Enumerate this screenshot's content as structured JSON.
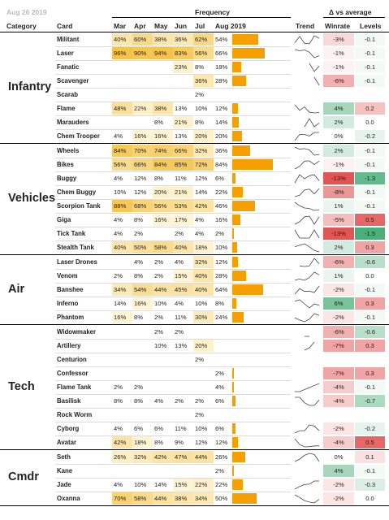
{
  "header": {
    "date": "Aug 26 2019",
    "frequency": "Frequency",
    "delta": "Δ vs average",
    "category": "Category",
    "card": "Card",
    "months": [
      "Mar",
      "Apr",
      "May",
      "Jun",
      "Jul",
      "Aug 2019"
    ],
    "trend": "Trend",
    "winrate": "Winrate",
    "levels": "Levels"
  },
  "colors": {
    "bar": "#f5a000",
    "pct_low": "#fff5d6",
    "pct_high": "#f5c24a",
    "pos": "#4caf7a",
    "neg": "#e04848",
    "separator": "#000000"
  },
  "chart_data": {
    "type": "table",
    "columns": [
      "Mar",
      "Apr",
      "May",
      "Jun",
      "Jul",
      "Aug 2019",
      "Trend",
      "Winrate",
      "Levels"
    ],
    "categories": [
      {
        "name": "Infantry",
        "rows": [
          {
            "card": "Militant",
            "freq": [
              "40%",
              "60%",
              "38%",
              "36%",
              "62%",
              "54%"
            ],
            "aug": 54,
            "winrate": "-3%",
            "wr": -3,
            "levels": "-0.1",
            "lv": -0.1
          },
          {
            "card": "Laser",
            "freq": [
              "96%",
              "90%",
              "94%",
              "83%",
              "56%",
              "66%"
            ],
            "aug": 66,
            "winrate": "-1%",
            "wr": -1,
            "levels": "-0.1",
            "lv": -0.1
          },
          {
            "card": "Fanatic",
            "freq": [
              "",
              "",
              "",
              "23%",
              "8%",
              "18%"
            ],
            "aug": 18,
            "winrate": "-1%",
            "wr": -1,
            "levels": "-0.1",
            "lv": -0.1
          },
          {
            "card": "Scavenger",
            "freq": [
              "",
              "",
              "",
              "",
              "36%",
              "28%"
            ],
            "aug": 28,
            "winrate": "-6%",
            "wr": -6,
            "levels": "-0.1",
            "lv": -0.1
          },
          {
            "card": "Scarab",
            "freq": [
              "",
              "",
              "",
              "",
              "2%",
              ""
            ],
            "aug": 0,
            "winrate": "",
            "wr": null,
            "levels": "",
            "lv": null
          },
          {
            "card": "Flame",
            "freq": [
              "48%",
              "22%",
              "38%",
              "13%",
              "10%",
              "12%"
            ],
            "aug": 12,
            "winrate": "4%",
            "wr": 4,
            "levels": "0.2",
            "lv": 0.2
          },
          {
            "card": "Marauders",
            "freq": [
              "",
              "",
              "8%",
              "21%",
              "8%",
              "14%"
            ],
            "aug": 14,
            "winrate": "2%",
            "wr": 2,
            "levels": "0.0",
            "lv": 0.0
          },
          {
            "card": "Chem Trooper",
            "freq": [
              "4%",
              "16%",
              "16%",
              "13%",
              "20%",
              "20%"
            ],
            "aug": 20,
            "winrate": "0%",
            "wr": 0,
            "levels": "-0.2",
            "lv": -0.2
          }
        ]
      },
      {
        "name": "Vehicles",
        "rows": [
          {
            "card": "Wheels",
            "freq": [
              "84%",
              "70%",
              "74%",
              "66%",
              "32%",
              "36%"
            ],
            "aug": 36,
            "winrate": "2%",
            "wr": 2,
            "levels": "-0.1",
            "lv": -0.1
          },
          {
            "card": "Bikes",
            "freq": [
              "56%",
              "66%",
              "84%",
              "85%",
              "72%",
              "84%"
            ],
            "aug": 84,
            "winrate": "-1%",
            "wr": -1,
            "levels": "-0.1",
            "lv": -0.1
          },
          {
            "card": "Buggy",
            "freq": [
              "4%",
              "12%",
              "8%",
              "11%",
              "12%",
              "6%"
            ],
            "aug": 6,
            "winrate": "-13%",
            "wr": -13,
            "levels": "-1.3",
            "lv": -1.3
          },
          {
            "card": "Chem Buggy",
            "freq": [
              "10%",
              "12%",
              "20%",
              "21%",
              "14%",
              "22%"
            ],
            "aug": 22,
            "winrate": "-8%",
            "wr": -8,
            "levels": "-0.1",
            "lv": -0.1
          },
          {
            "card": "Scorpion Tank",
            "freq": [
              "88%",
              "68%",
              "56%",
              "53%",
              "42%",
              "46%"
            ],
            "aug": 46,
            "winrate": "1%",
            "wr": 1,
            "levels": "-0.1",
            "lv": -0.1
          },
          {
            "card": "Giga",
            "freq": [
              "4%",
              "8%",
              "16%",
              "17%",
              "4%",
              "16%"
            ],
            "aug": 16,
            "winrate": "-5%",
            "wr": -5,
            "levels": "0.5",
            "lv": 0.5
          },
          {
            "card": "Tick Tank",
            "freq": [
              "4%",
              "2%",
              "",
              "2%",
              "4%",
              "2%"
            ],
            "aug": 2,
            "winrate": "-13%",
            "wr": -13,
            "levels": "-1.5",
            "lv": -1.5
          },
          {
            "card": "Stealth Tank",
            "freq": [
              "40%",
              "50%",
              "58%",
              "40%",
              "18%",
              "10%"
            ],
            "aug": 10,
            "winrate": "2%",
            "wr": 2,
            "levels": "0.3",
            "lv": 0.3
          }
        ]
      },
      {
        "name": "Air",
        "rows": [
          {
            "card": "Laser Drones",
            "freq": [
              "",
              "4%",
              "2%",
              "4%",
              "32%",
              "12%"
            ],
            "aug": 12,
            "winrate": "-6%",
            "wr": -6,
            "levels": "-0.6",
            "lv": -0.6
          },
          {
            "card": "Venom",
            "freq": [
              "2%",
              "8%",
              "2%",
              "15%",
              "40%",
              "28%"
            ],
            "aug": 28,
            "winrate": "1%",
            "wr": 1,
            "levels": "0.0",
            "lv": 0.0
          },
          {
            "card": "Banshee",
            "freq": [
              "34%",
              "54%",
              "44%",
              "45%",
              "40%",
              "64%"
            ],
            "aug": 64,
            "winrate": "-2%",
            "wr": -2,
            "levels": "-0.1",
            "lv": -0.1
          },
          {
            "card": "Inferno",
            "freq": [
              "14%",
              "16%",
              "10%",
              "4%",
              "10%",
              "8%"
            ],
            "aug": 8,
            "winrate": "6%",
            "wr": 6,
            "levels": "0.3",
            "lv": 0.3
          },
          {
            "card": "Phantom",
            "freq": [
              "16%",
              "8%",
              "2%",
              "11%",
              "30%",
              "24%"
            ],
            "aug": 24,
            "winrate": "-2%",
            "wr": -2,
            "levels": "-0.1",
            "lv": -0.1
          }
        ]
      },
      {
        "name": "Tech",
        "rows": [
          {
            "card": "Widowmaker",
            "freq": [
              "",
              "",
              "2%",
              "2%",
              "",
              ""
            ],
            "aug": 0,
            "winrate": "-6%",
            "wr": -6,
            "levels": "-0.6",
            "lv": -0.6
          },
          {
            "card": "Artillery",
            "freq": [
              "",
              "",
              "10%",
              "13%",
              "20%",
              ""
            ],
            "aug": 0,
            "winrate": "-7%",
            "wr": -7,
            "levels": "0.3",
            "lv": 0.3
          },
          {
            "card": "Centurion",
            "freq": [
              "",
              "",
              "",
              "",
              "2%",
              ""
            ],
            "aug": 0,
            "winrate": "",
            "wr": null,
            "levels": "",
            "lv": null
          },
          {
            "card": "Confessor",
            "freq": [
              "",
              "",
              "",
              "",
              "",
              "2%"
            ],
            "aug": 2,
            "winrate": "-7%",
            "wr": -7,
            "levels": "0.3",
            "lv": 0.3
          },
          {
            "card": "Flame Tank",
            "freq": [
              "2%",
              "2%",
              "",
              "",
              "",
              "4%"
            ],
            "aug": 4,
            "winrate": "-4%",
            "wr": -4,
            "levels": "-0.1",
            "lv": -0.1
          },
          {
            "card": "Basilisk",
            "freq": [
              "8%",
              "8%",
              "4%",
              "2%",
              "2%",
              "6%"
            ],
            "aug": 6,
            "winrate": "-4%",
            "wr": -4,
            "levels": "-0.7",
            "lv": -0.7
          },
          {
            "card": "Rock Worm",
            "freq": [
              "",
              "",
              "",
              "",
              "2%",
              ""
            ],
            "aug": 0,
            "winrate": "",
            "wr": null,
            "levels": "",
            "lv": null
          },
          {
            "card": "Cyborg",
            "freq": [
              "4%",
              "6%",
              "6%",
              "11%",
              "10%",
              "6%"
            ],
            "aug": 6,
            "winrate": "-2%",
            "wr": -2,
            "levels": "-0.2",
            "lv": -0.2
          },
          {
            "card": "Avatar",
            "freq": [
              "42%",
              "18%",
              "8%",
              "9%",
              "12%",
              "12%"
            ],
            "aug": 12,
            "winrate": "-4%",
            "wr": -4,
            "levels": "0.5",
            "lv": 0.5
          }
        ]
      },
      {
        "name": "Cmdr",
        "rows": [
          {
            "card": "Seth",
            "freq": [
              "26%",
              "32%",
              "42%",
              "47%",
              "44%",
              "26%"
            ],
            "aug": 26,
            "winrate": "0%",
            "wr": 0,
            "levels": "0.1",
            "lv": 0.1
          },
          {
            "card": "Kane",
            "freq": [
              "",
              "",
              "",
              "",
              "",
              "2%"
            ],
            "aug": 2,
            "winrate": "4%",
            "wr": 4,
            "levels": "-0.1",
            "lv": -0.1
          },
          {
            "card": "Jade",
            "freq": [
              "4%",
              "10%",
              "14%",
              "15%",
              "22%",
              "22%"
            ],
            "aug": 22,
            "winrate": "-2%",
            "wr": -2,
            "levels": "-0.3",
            "lv": -0.3
          },
          {
            "card": "Oxanna",
            "freq": [
              "70%",
              "58%",
              "44%",
              "38%",
              "34%",
              "50%"
            ],
            "aug": 50,
            "winrate": "-2%",
            "wr": -2,
            "levels": "0.0",
            "lv": 0.0
          }
        ]
      }
    ]
  }
}
